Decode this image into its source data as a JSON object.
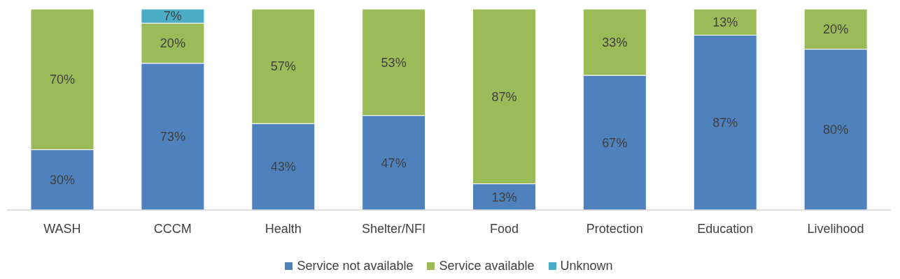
{
  "chart_data": {
    "type": "bar",
    "stacked": true,
    "categories": [
      "WASH",
      "CCCM",
      "Health",
      "Shelter/NFI",
      "Food",
      "Protection",
      "Education",
      "Livelihood"
    ],
    "series": [
      {
        "name": "Service not available",
        "color": "#4f81bd",
        "values": [
          30,
          73,
          43,
          47,
          13,
          67,
          87,
          80
        ],
        "value_labels": [
          "30%",
          "73%",
          "43%",
          "47%",
          "13%",
          "67%",
          "87%",
          "80%"
        ]
      },
      {
        "name": "Service available",
        "color": "#9bbb59",
        "values": [
          70,
          20,
          57,
          53,
          87,
          33,
          13,
          20
        ],
        "value_labels": [
          "70%",
          "20%",
          "57%",
          "53%",
          "87%",
          "33%",
          "13%",
          "20%"
        ]
      },
      {
        "name": "Unknown",
        "color": "#4bacc6",
        "values": [
          null,
          7,
          null,
          null,
          null,
          null,
          null,
          null
        ],
        "value_labels": [
          null,
          "7%",
          null,
          null,
          null,
          null,
          null,
          null
        ]
      }
    ],
    "legend": "bottom",
    "grid": false
  }
}
